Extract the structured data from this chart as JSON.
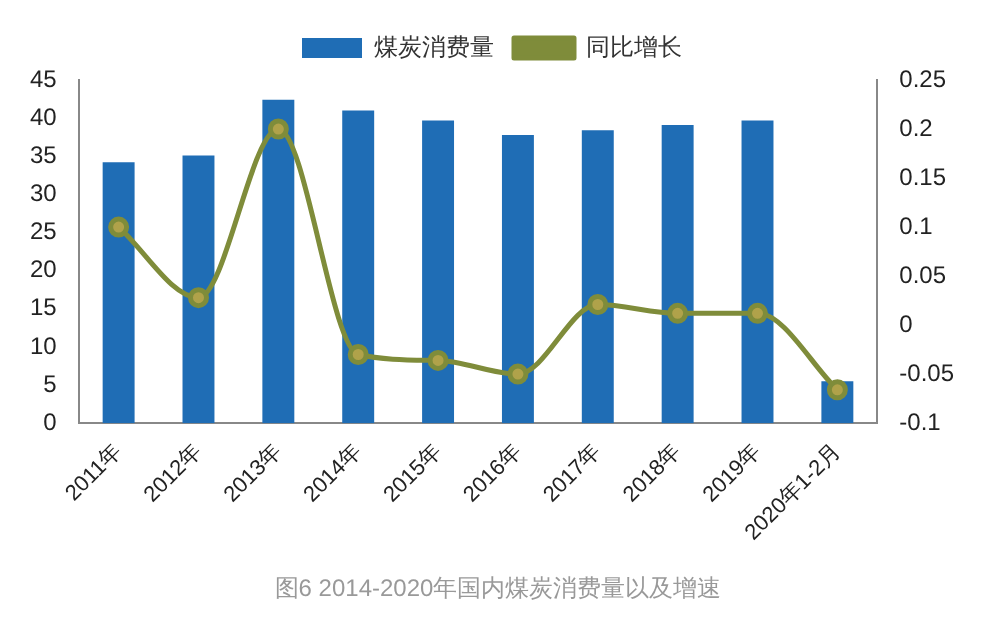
{
  "chart_data": {
    "type": "bar",
    "categories": [
      "2011年",
      "2012年",
      "2013年",
      "2014年",
      "2015年",
      "2016年",
      "2017年",
      "2018年",
      "2019年",
      "2020年1-2月"
    ],
    "series": [
      {
        "name": "煤炭消费量",
        "color": "#1f6db5",
        "values": [
          34.2,
          35.1,
          42.4,
          41.0,
          39.7,
          37.8,
          38.4,
          39.1,
          39.7,
          5.5
        ]
      },
      {
        "name": "同比增长",
        "type": "line",
        "axis": "y2",
        "color": "#7f8c3a",
        "values": [
          0.1,
          0.028,
          0.2,
          -0.03,
          -0.036,
          -0.05,
          0.021,
          0.012,
          0.012,
          -0.066
        ]
      }
    ],
    "ylim": [
      0,
      45
    ],
    "yticks": [
      0,
      5,
      10,
      15,
      20,
      25,
      30,
      35,
      40,
      45
    ],
    "y2lim": [
      -0.1,
      0.25
    ],
    "y2ticks": [
      {
        "value": -0.1,
        "label": "-0.1"
      },
      -0.05,
      0,
      0.05,
      {
        "value": 0.1,
        "label": "0.1"
      },
      0.15,
      {
        "value": 0.2,
        "label": "0.2"
      },
      0.25
    ],
    "legend": "top",
    "grid": false,
    "marker": "circle",
    "line_style": "solid",
    "annotations": [
      "图6 2014-2020年国内煤炭消费量以及增速"
    ]
  }
}
